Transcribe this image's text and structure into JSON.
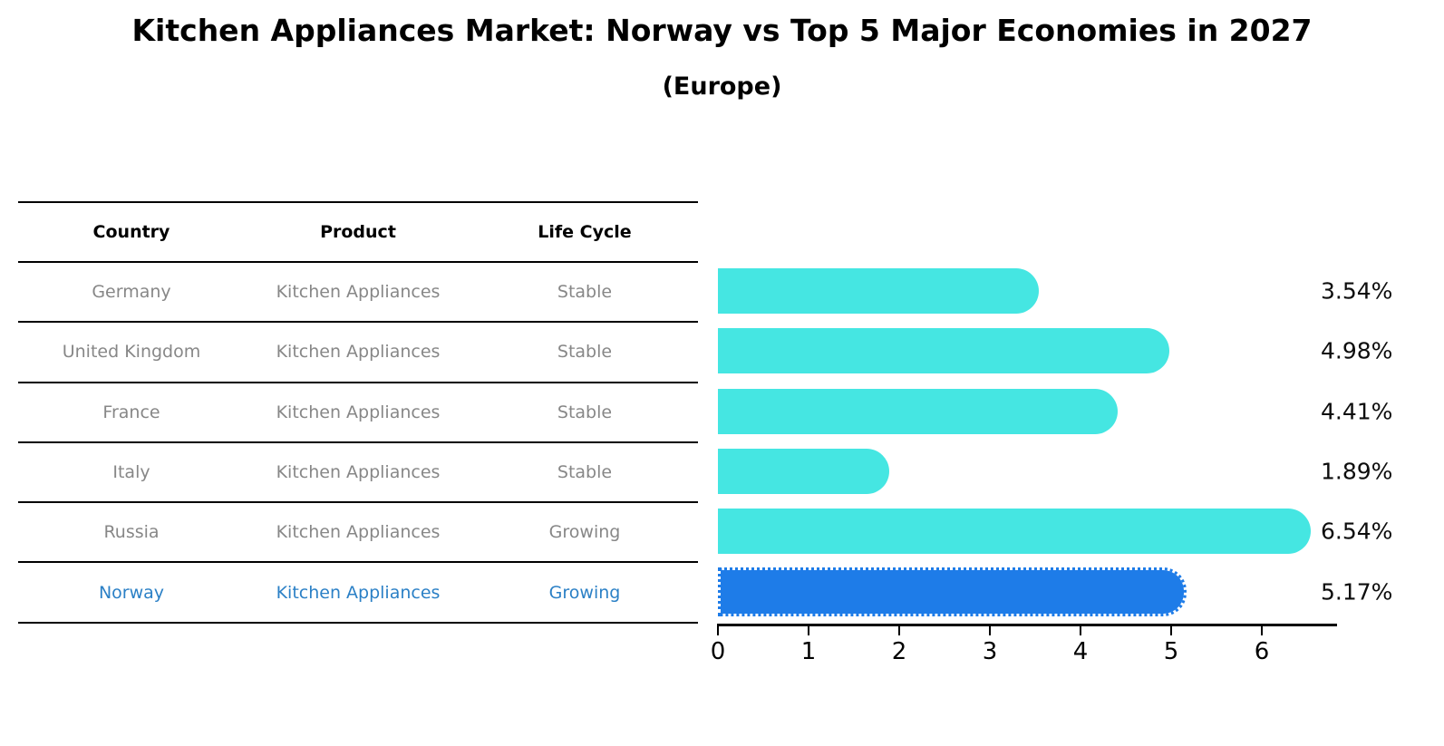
{
  "title": "Kitchen Appliances Market: Norway vs Top 5 Major Economies in 2027",
  "subtitle": "(Europe)",
  "table": {
    "headers": [
      "Country",
      "Product",
      "Life Cycle"
    ],
    "rows": [
      {
        "country": "Germany",
        "product": "Kitchen Appliances",
        "life_cycle": "Stable",
        "highlighted": false
      },
      {
        "country": "United Kingdom",
        "product": "Kitchen Appliances",
        "life_cycle": "Stable",
        "highlighted": false
      },
      {
        "country": "France",
        "product": "Kitchen Appliances",
        "life_cycle": "Stable",
        "highlighted": false
      },
      {
        "country": "Italy",
        "product": "Kitchen Appliances",
        "life_cycle": "Stable",
        "highlighted": false
      },
      {
        "country": "Russia",
        "product": "Kitchen Appliances",
        "life_cycle": "Growing",
        "highlighted": false
      },
      {
        "country": "Norway",
        "product": "Kitchen Appliances",
        "life_cycle": "Growing",
        "highlighted": true
      }
    ]
  },
  "chart_data": {
    "type": "bar",
    "orientation": "horizontal",
    "title": "Kitchen Appliances Market: Norway vs Top 5 Major Economies in 2027",
    "subtitle": "(Europe)",
    "categories": [
      "Germany",
      "United Kingdom",
      "France",
      "Italy",
      "Russia",
      "Norway"
    ],
    "values": [
      3.54,
      4.98,
      4.41,
      1.89,
      6.54,
      5.17
    ],
    "value_labels": [
      "3.54%",
      "4.98%",
      "4.41%",
      "1.89%",
      "6.54%",
      "5.17%"
    ],
    "xlabel": "",
    "ylabel": "",
    "xlim": [
      0,
      6.9
    ],
    "x_ticks": [
      0,
      1,
      2,
      3,
      4,
      5,
      6
    ],
    "grid": false,
    "legend": false,
    "highlight_index": 5,
    "highlight_border_style": "dotted",
    "colors": {
      "bar_default": "#45E6E2",
      "bar_highlight": "#1E7CE8",
      "highlight_text": "#2B80C6",
      "table_text": "#878787",
      "header_text": "#000000",
      "axis": "#000000"
    }
  }
}
